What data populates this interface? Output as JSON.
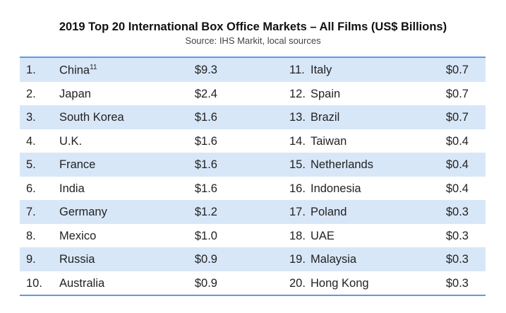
{
  "title": "2019 Top 20 International Box Office Markets – All Films (US$ Billions)",
  "subtitle": "Source: IHS Markit, local sources",
  "colors": {
    "shade": "#d8e7f8",
    "rule": "#5b9be6"
  },
  "rows": [
    {
      "left": {
        "rank": "1.",
        "country": "China",
        "note": "11",
        "value": "$9.3"
      },
      "right": {
        "rank": "11.",
        "country": "Italy",
        "value": "$0.7"
      }
    },
    {
      "left": {
        "rank": "2.",
        "country": "Japan",
        "value": "$2.4"
      },
      "right": {
        "rank": "12.",
        "country": "Spain",
        "value": "$0.7"
      }
    },
    {
      "left": {
        "rank": "3.",
        "country": "South Korea",
        "value": "$1.6"
      },
      "right": {
        "rank": "13.",
        "country": "Brazil",
        "value": "$0.7"
      }
    },
    {
      "left": {
        "rank": "4.",
        "country": "U.K.",
        "value": "$1.6"
      },
      "right": {
        "rank": "14.",
        "country": "Taiwan",
        "value": "$0.4"
      }
    },
    {
      "left": {
        "rank": "5.",
        "country": "France",
        "value": "$1.6"
      },
      "right": {
        "rank": "15.",
        "country": "Netherlands",
        "value": "$0.4"
      }
    },
    {
      "left": {
        "rank": "6.",
        "country": "India",
        "value": "$1.6"
      },
      "right": {
        "rank": "16.",
        "country": "Indonesia",
        "value": "$0.4"
      }
    },
    {
      "left": {
        "rank": "7.",
        "country": "Germany",
        "value": "$1.2"
      },
      "right": {
        "rank": "17.",
        "country": "Poland",
        "value": "$0.3"
      }
    },
    {
      "left": {
        "rank": "8.",
        "country": "Mexico",
        "value": "$1.0"
      },
      "right": {
        "rank": "18.",
        "country": "UAE",
        "value": "$0.3"
      }
    },
    {
      "left": {
        "rank": "9.",
        "country": "Russia",
        "value": "$0.9"
      },
      "right": {
        "rank": "19.",
        "country": "Malaysia",
        "value": "$0.3"
      }
    },
    {
      "left": {
        "rank": "10.",
        "country": "Australia",
        "value": "$0.9"
      },
      "right": {
        "rank": "20.",
        "country": "Hong Kong",
        "value": "$0.3"
      }
    }
  ]
}
